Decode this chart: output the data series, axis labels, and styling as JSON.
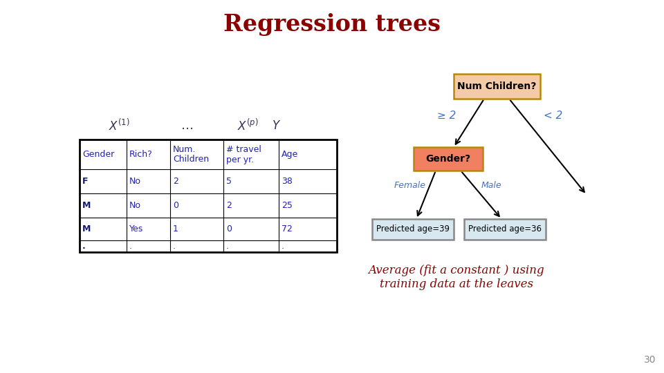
{
  "title": "Regression trees",
  "title_color": "#8B0000",
  "title_fontsize": 24,
  "background_color": "#ffffff",
  "table_headers": [
    "Gender",
    "Rich?",
    "Num.\nChildren",
    "# travel\nper yr.",
    "Age"
  ],
  "table_rows": [
    [
      "F",
      "No",
      "2",
      "5",
      "38"
    ],
    [
      "M",
      "No",
      "0",
      "2",
      "25"
    ],
    [
      "M",
      "Yes",
      "1",
      "0",
      "72"
    ],
    [
      ".",
      ".",
      ".",
      ".",
      "."
    ]
  ],
  "node_root_text": "Num Children?",
  "node_root_color": "#F5CBA7",
  "node_root_edge_color": "#B8860B",
  "node_left_text": "Gender?",
  "node_left_color": "#F08060",
  "node_left_edge_color": "#B8860B",
  "node_leaf1_text": "Predicted age=39",
  "node_leaf1_color": "#D8E8F0",
  "node_leaf1_edge_color": "#888888",
  "node_leaf2_text": "Predicted age=36",
  "node_leaf2_color": "#D8E8F0",
  "node_leaf2_edge_color": "#888888",
  "branch_geq2": "≥ 2",
  "branch_lt2": "< 2",
  "branch_female": "Female",
  "branch_male": "Male",
  "branch_color": "#4472C4",
  "line_color": "#000000",
  "avg_text_line1": "Average (fit a constant ) using",
  "avg_text_line2": "training data at the leaves",
  "avg_text_color": "#8B0000",
  "page_number": "30",
  "table_text_color": "#2222AA",
  "table_bold_col": "#1A1A6A"
}
